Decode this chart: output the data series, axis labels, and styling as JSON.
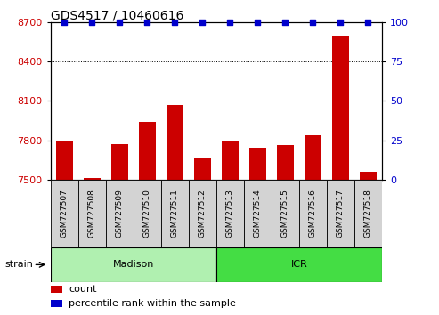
{
  "title": "GDS4517 / 10460616",
  "samples": [
    "GSM727507",
    "GSM727508",
    "GSM727509",
    "GSM727510",
    "GSM727511",
    "GSM727512",
    "GSM727513",
    "GSM727514",
    "GSM727515",
    "GSM727516",
    "GSM727517",
    "GSM727518"
  ],
  "counts": [
    7790,
    7510,
    7770,
    7940,
    8070,
    7660,
    7790,
    7740,
    7760,
    7840,
    8600,
    7560
  ],
  "percentile_ranks": [
    100,
    100,
    100,
    100,
    100,
    100,
    100,
    100,
    100,
    100,
    100,
    100
  ],
  "ylim_left": [
    7500,
    8700
  ],
  "ylim_right": [
    0,
    100
  ],
  "yticks_left": [
    7500,
    7800,
    8100,
    8400,
    8700
  ],
  "yticks_right": [
    0,
    25,
    50,
    75,
    100
  ],
  "bar_color": "#cc0000",
  "scatter_color": "#0000cc",
  "groups": [
    {
      "label": "Madison",
      "start": 0,
      "end": 6,
      "color": "#b0f0b0"
    },
    {
      "label": "ICR",
      "start": 6,
      "end": 12,
      "color": "#44dd44"
    }
  ],
  "group_label": "strain",
  "legend_count_label": "count",
  "legend_pct_label": "percentile rank within the sample",
  "background_color": "#ffffff",
  "bar_width": 0.6,
  "xlabel_color": "#cc0000",
  "ylabel_right_color": "#0000cc",
  "sample_box_color": "#d3d3d3"
}
